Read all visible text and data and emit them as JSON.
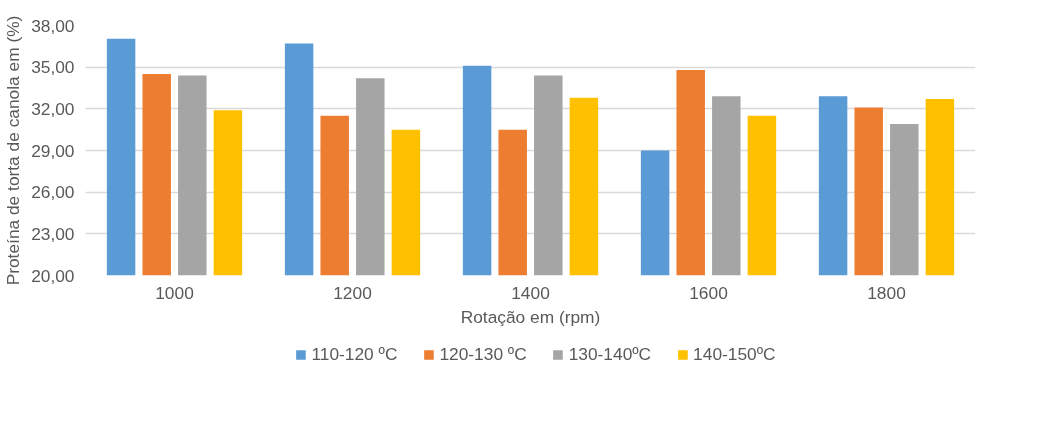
{
  "chart_data": {
    "type": "bar",
    "xlabel": "Rotação em (rpm)",
    "ylabel": "Proteína de torta de canola em (%)",
    "categories": [
      "1000",
      "1200",
      "1400",
      "1600",
      "1800"
    ],
    "series": [
      {
        "name": "110-120 ºC",
        "color": "#5b9bd5",
        "values": [
          37.05,
          36.7,
          35.1,
          29.0,
          32.9
        ]
      },
      {
        "name": "120-130 ºC",
        "color": "#ed7d31",
        "values": [
          34.5,
          31.5,
          30.5,
          34.8,
          32.1
        ]
      },
      {
        "name": "130-140ºC",
        "color": "#a5a5a5",
        "values": [
          34.4,
          34.2,
          34.4,
          32.9,
          30.9
        ]
      },
      {
        "name": "140-150ºC",
        "color": "#ffc000",
        "values": [
          31.9,
          30.5,
          32.8,
          31.5,
          32.7
        ]
      }
    ],
    "ylim": [
      20,
      38
    ],
    "yticks": [
      {
        "value": 20,
        "label": "20,00"
      },
      {
        "value": 23,
        "label": "23,00"
      },
      {
        "value": 26,
        "label": "26,00"
      },
      {
        "value": 29,
        "label": "29,00"
      },
      {
        "value": 32,
        "label": "32,00"
      },
      {
        "value": 35,
        "label": "35,00"
      },
      {
        "value": 38,
        "label": "38,00"
      }
    ],
    "grid": "y",
    "legend": "bottom"
  }
}
